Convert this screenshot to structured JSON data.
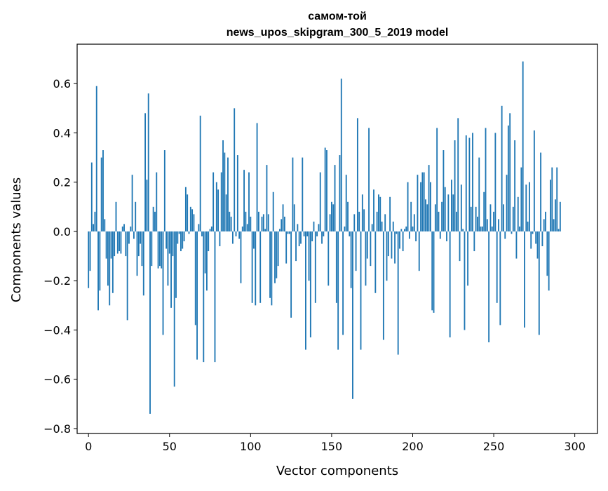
{
  "chart_data": {
    "type": "bar",
    "title": "самом-той",
    "subtitle": "news_upos_skipgram_300_5_2019 model",
    "xlabel": "Vector components",
    "ylabel": "Components values",
    "xlim": [
      -7,
      314
    ],
    "ylim": [
      -0.82,
      0.76
    ],
    "x_ticks": [
      0,
      50,
      100,
      150,
      200,
      250,
      300
    ],
    "x_tick_labels": [
      "0",
      "50",
      "100",
      "150",
      "200",
      "250",
      "300"
    ],
    "y_ticks": [
      -0.8,
      -0.6,
      -0.4,
      -0.2,
      0.0,
      0.2,
      0.4,
      0.6
    ],
    "y_tick_labels": [
      "−0.8",
      "−0.6",
      "−0.4",
      "−0.2",
      "0.0",
      "0.2",
      "0.4",
      "0.6"
    ],
    "bar_color": "#1f77b4",
    "values": [
      -0.23,
      -0.16,
      0.28,
      0.03,
      0.08,
      0.59,
      -0.32,
      -0.24,
      0.3,
      0.33,
      0.05,
      -0.11,
      -0.22,
      -0.3,
      -0.11,
      -0.25,
      -0.1,
      0.12,
      -0.09,
      -0.08,
      -0.09,
      0.02,
      0.03,
      -0.1,
      -0.36,
      -0.05,
      0.02,
      0.23,
      -0.03,
      0.12,
      -0.18,
      -0.1,
      -0.05,
      -0.14,
      -0.26,
      0.48,
      0.21,
      0.56,
      -0.74,
      -0.14,
      0.1,
      0.08,
      0.24,
      -0.15,
      -0.14,
      -0.15,
      -0.42,
      0.33,
      -0.07,
      -0.22,
      -0.09,
      -0.31,
      -0.1,
      -0.63,
      -0.27,
      -0.05,
      -0.01,
      -0.08,
      -0.07,
      -0.04,
      0.18,
      0.15,
      -0.01,
      0.1,
      0.09,
      0.07,
      -0.38,
      -0.52,
      0.03,
      0.47,
      -0.02,
      -0.53,
      -0.17,
      -0.24,
      -0.08,
      0.01,
      0.02,
      0.24,
      -0.53,
      0.2,
      0.17,
      -0.06,
      0.24,
      0.37,
      0.32,
      0.15,
      0.3,
      0.08,
      0.06,
      -0.05,
      0.5,
      -0.02,
      0.31,
      -0.03,
      -0.21,
      0.02,
      0.25,
      0.08,
      0.03,
      0.24,
      0.06,
      -0.29,
      -0.07,
      -0.3,
      0.44,
      0.08,
      -0.29,
      0.06,
      0.07,
      0.01,
      0.27,
      0.07,
      -0.27,
      -0.3,
      0.16,
      -0.21,
      -0.19,
      -0.14,
      0.01,
      0.05,
      0.11,
      0.06,
      -0.13,
      -0.01,
      -0.01,
      -0.35,
      0.3,
      0.11,
      -0.12,
      0.03,
      -0.06,
      -0.05,
      0.3,
      -0.02,
      -0.48,
      -0.02,
      -0.2,
      -0.43,
      -0.04,
      0.04,
      -0.29,
      -0.02,
      0.03,
      0.24,
      -0.05,
      -0.02,
      0.34,
      0.33,
      -0.22,
      0.07,
      0.12,
      0.11,
      0.27,
      -0.29,
      -0.48,
      0.31,
      0.62,
      -0.42,
      0.02,
      0.23,
      0.12,
      -0.02,
      -0.23,
      -0.68,
      0.07,
      -0.16,
      0.46,
      0.08,
      -0.48,
      0.15,
      0.09,
      -0.22,
      -0.11,
      0.42,
      -0.14,
      0.03,
      0.17,
      -0.25,
      0.08,
      0.15,
      0.14,
      0.04,
      -0.44,
      0.07,
      -0.2,
      -0.1,
      0.14,
      -0.11,
      0.04,
      -0.13,
      -0.01,
      -0.5,
      -0.07,
      0.01,
      -0.08,
      0.01,
      0.02,
      0.2,
      -0.03,
      0.12,
      0.02,
      0.07,
      -0.04,
      0.23,
      -0.16,
      0.2,
      0.24,
      0.24,
      0.13,
      0.11,
      0.27,
      0.2,
      -0.32,
      -0.33,
      0.11,
      0.42,
      0.08,
      -0.03,
      0.12,
      0.33,
      0.18,
      -0.04,
      0.15,
      -0.43,
      0.21,
      0.15,
      0.37,
      0.08,
      0.46,
      -0.12,
      0.19,
      0.01,
      -0.4,
      0.39,
      -0.22,
      0.38,
      0.1,
      0.4,
      -0.08,
      0.1,
      0.06,
      0.3,
      0.02,
      0.02,
      0.16,
      0.42,
      0.05,
      -0.45,
      0.11,
      0.02,
      0.08,
      0.4,
      -0.29,
      0.05,
      -0.38,
      0.51,
      0.11,
      -0.03,
      0.23,
      0.43,
      0.48,
      -0.01,
      0.1,
      0.37,
      -0.11,
      0.14,
      0.02,
      0.26,
      0.69,
      -0.39,
      0.19,
      0.04,
      0.2,
      -0.07,
      -0.01,
      0.41,
      -0.05,
      -0.11,
      -0.42,
      0.32,
      -0.06,
      0.05,
      0.08,
      -0.18,
      -0.24,
      0.21,
      0.26,
      0.05,
      0.13,
      0.26,
      0.01,
      0.12
    ]
  }
}
